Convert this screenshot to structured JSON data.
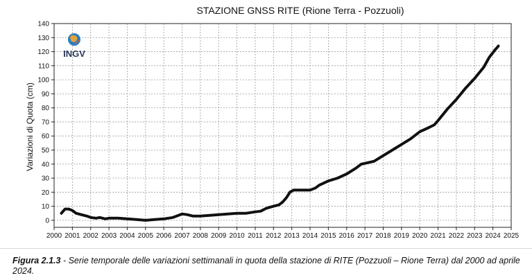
{
  "chart_data": {
    "type": "line",
    "title": "STAZIONE GNSS RITE (Rione Terra - Pozzuoli)",
    "xlabel": "",
    "ylabel": "Variazioni di Quota (cm)",
    "xlim": [
      2000,
      2025
    ],
    "ylim": [
      -5,
      140
    ],
    "x_ticks": [
      2000,
      2001,
      2002,
      2003,
      2004,
      2005,
      2006,
      2007,
      2008,
      2009,
      2010,
      2011,
      2012,
      2013,
      2014,
      2015,
      2016,
      2017,
      2018,
      2019,
      2020,
      2021,
      2022,
      2023,
      2024,
      2025
    ],
    "y_ticks": [
      0,
      10,
      20,
      30,
      40,
      50,
      60,
      70,
      80,
      90,
      100,
      110,
      120,
      130,
      140
    ],
    "grid": true,
    "series": [
      {
        "color": "#111111",
        "points": [
          [
            2000.4,
            5
          ],
          [
            2000.6,
            8
          ],
          [
            2000.8,
            8
          ],
          [
            2001.0,
            7
          ],
          [
            2001.2,
            5
          ],
          [
            2001.5,
            4
          ],
          [
            2001.8,
            3
          ],
          [
            2002.0,
            2
          ],
          [
            2002.3,
            1.5
          ],
          [
            2002.5,
            2
          ],
          [
            2002.8,
            1
          ],
          [
            2003.0,
            1.5
          ],
          [
            2003.5,
            1.5
          ],
          [
            2004.0,
            1
          ],
          [
            2004.5,
            0.5
          ],
          [
            2005.0,
            0
          ],
          [
            2005.5,
            0.5
          ],
          [
            2006.0,
            1
          ],
          [
            2006.5,
            2
          ],
          [
            2007.0,
            4.5
          ],
          [
            2007.3,
            4
          ],
          [
            2007.6,
            3
          ],
          [
            2008.0,
            3
          ],
          [
            2008.5,
            3.5
          ],
          [
            2009.0,
            4
          ],
          [
            2009.5,
            4.5
          ],
          [
            2010.0,
            5
          ],
          [
            2010.5,
            5
          ],
          [
            2011.0,
            6
          ],
          [
            2011.3,
            6.5
          ],
          [
            2011.6,
            8.5
          ],
          [
            2012.0,
            10
          ],
          [
            2012.3,
            11
          ],
          [
            2012.5,
            13
          ],
          [
            2012.7,
            16
          ],
          [
            2012.9,
            20
          ],
          [
            2013.1,
            21.5
          ],
          [
            2013.5,
            21.5
          ],
          [
            2014.0,
            21.5
          ],
          [
            2014.3,
            23
          ],
          [
            2014.5,
            25
          ],
          [
            2015.0,
            28
          ],
          [
            2015.5,
            30
          ],
          [
            2016.0,
            33
          ],
          [
            2016.5,
            37
          ],
          [
            2016.8,
            40
          ],
          [
            2017.0,
            40.5
          ],
          [
            2017.5,
            42
          ],
          [
            2018.0,
            46
          ],
          [
            2018.5,
            50
          ],
          [
            2019.0,
            54
          ],
          [
            2019.5,
            58
          ],
          [
            2020.0,
            63
          ],
          [
            2020.5,
            66
          ],
          [
            2020.8,
            68
          ],
          [
            2021.0,
            71
          ],
          [
            2021.5,
            79
          ],
          [
            2022.0,
            86
          ],
          [
            2022.5,
            94
          ],
          [
            2023.0,
            101
          ],
          [
            2023.5,
            109
          ],
          [
            2023.8,
            116
          ],
          [
            2024.1,
            121
          ],
          [
            2024.3,
            124
          ]
        ]
      }
    ]
  },
  "logo": {
    "text": "INGV"
  },
  "caption": {
    "label": "Figura 2.1.3",
    "text": " - Serie temporale delle variazioni settimanali in quota della stazione di RITE (Pozzuoli – Rione Terra) dal 2000 ad aprile 2024."
  }
}
